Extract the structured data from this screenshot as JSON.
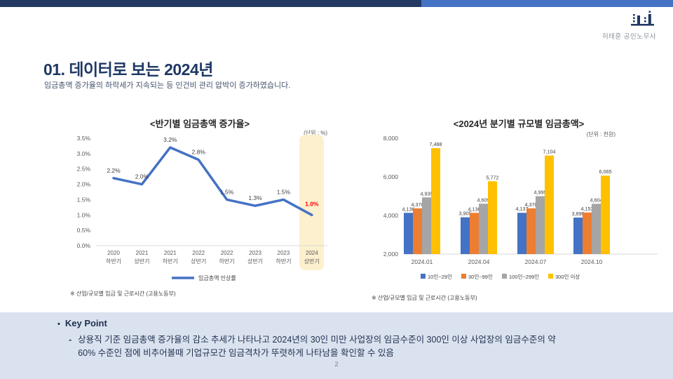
{
  "brand": {
    "name": "허태훈 공인노무사"
  },
  "header": {
    "title": "01. 데이터로 보는 2024년",
    "subtitle": "임금총액 증가율의 하락세가 지속되는 등 인건비 관리 압박이 증가하였습니다."
  },
  "colors": {
    "topbar_left": "#243a63",
    "topbar_right": "#4472c4",
    "title_navy": "#1f3864",
    "panel_bg": "#dbe2ef",
    "axis_text": "#595959"
  },
  "chart_data": [
    {
      "type": "line",
      "title": "<반기별 임금총액 증가율>",
      "unit_label": "(단위 : %)",
      "categories": [
        [
          "2020",
          "하반기"
        ],
        [
          "2021",
          "상반기"
        ],
        [
          "2021",
          "하반기"
        ],
        [
          "2022",
          "상반기"
        ],
        [
          "2022",
          "하반기"
        ],
        [
          "2023",
          "상반기"
        ],
        [
          "2023",
          "하반기"
        ],
        [
          "2024",
          "상반기"
        ]
      ],
      "values": [
        2.2,
        2.0,
        3.2,
        2.8,
        1.5,
        1.3,
        1.5,
        1.0
      ],
      "labels": [
        "2.2%",
        "2.0%",
        "3.2%",
        "2.8%",
        "1.5%",
        "1.3%",
        "1.5%",
        "1.0%"
      ],
      "ylim": [
        0,
        3.5
      ],
      "yticks": [
        "0.0%",
        "0.5%",
        "1.0%",
        "1.5%",
        "2.0%",
        "2.5%",
        "3.0%",
        "3.5%"
      ],
      "legend": "임금총액 인상률",
      "line_color": "#4472c4",
      "highlight_index": 7,
      "highlight_color": "#fdf0ce",
      "highlight_label_color": "#ff0000",
      "grid": "off",
      "footnote": "※ 산업/규모별 임금 및 근로시간 (고용노동부)"
    },
    {
      "type": "bar",
      "title": "<2024년 분기별 규모별 임금총액>",
      "unit_label": "(단위 : 천원)",
      "categories": [
        "2024.01",
        "2024.04",
        "2024.07",
        "2024.10"
      ],
      "series": [
        {
          "name": "10인~29인",
          "color": "#4472c4",
          "values": [
            4136,
            3905,
            4137,
            3890
          ]
        },
        {
          "name": "30인~99인",
          "color": "#ed7d31",
          "values": [
            4370,
            4136,
            4370,
            4153
          ]
        },
        {
          "name": "100인~299인",
          "color": "#a5a5a5",
          "values": [
            4935,
            4609,
            4999,
            4604
          ]
        },
        {
          "name": "300인 이상",
          "color": "#ffc000",
          "values": [
            7488,
            5772,
            7104,
            6065
          ]
        }
      ],
      "ylim": [
        2000,
        8000
      ],
      "yticks": [
        "2,000",
        "4,000",
        "6,000",
        "8,000"
      ],
      "legend_position": "bottom",
      "grid": "off",
      "footnote": "※ 산업/규모별 임금 및 근로시간 (고용노동부)"
    }
  ],
  "key_point": {
    "heading": "Key Point",
    "bullet_marker": "-",
    "lines": [
      "상용직 기준 임금총액 증가율의 감소 추세가 나타나고 2024년의 30인 미만 사업장의 임금수준이 300인 이상 사업장의 임금수준의 약",
      "60% 수준인 점에 비추어볼때 기업규모간 임금격차가 뚜렷하게 나타남을 확인할 수 있음"
    ]
  },
  "page_number": "2"
}
